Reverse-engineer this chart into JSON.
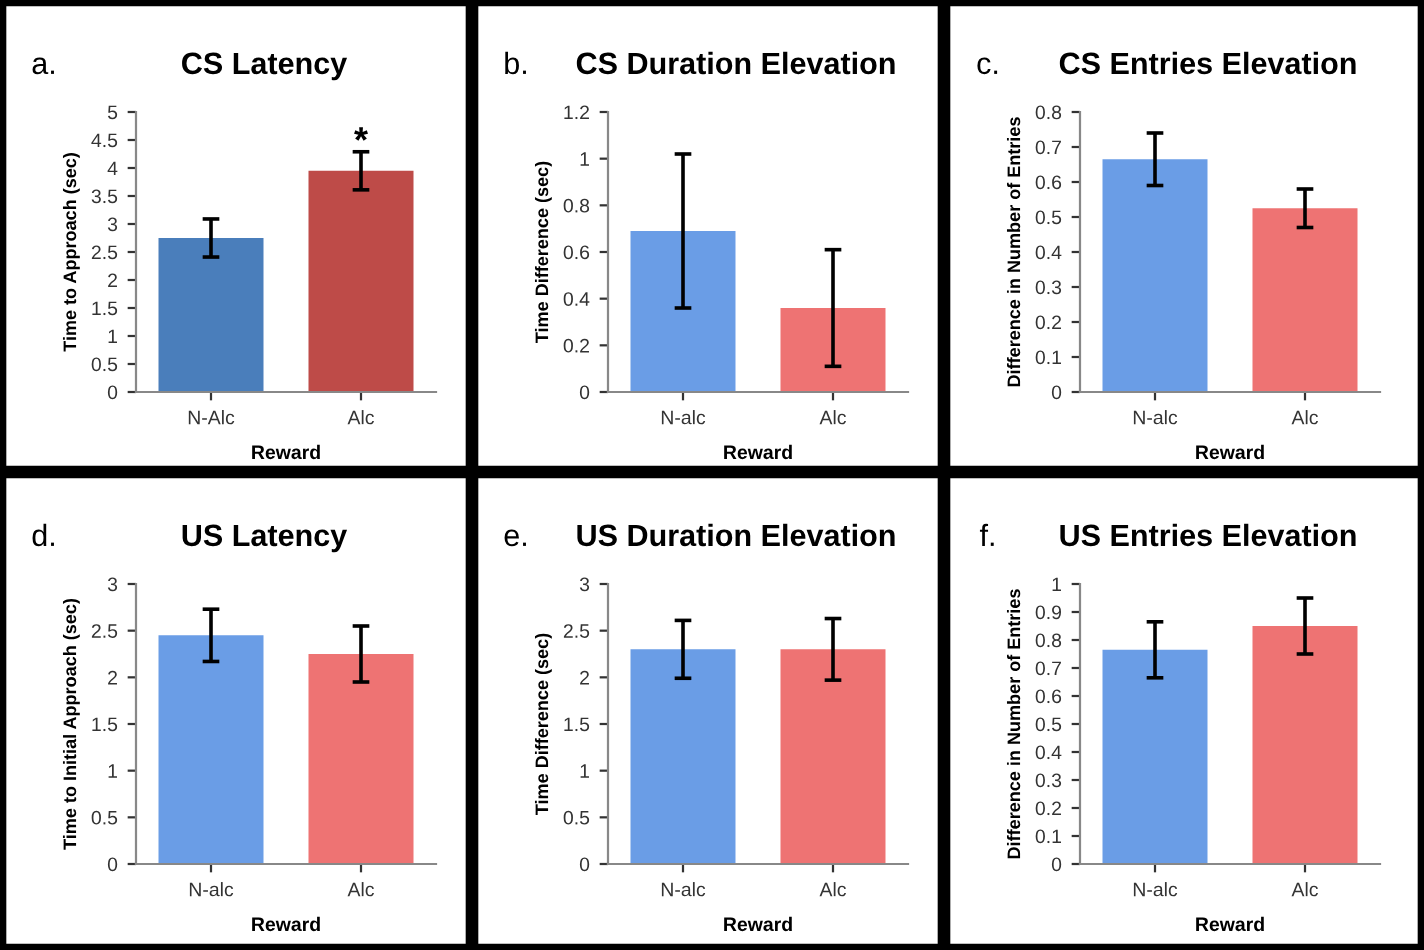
{
  "chart_data": [
    {
      "type": "bar",
      "title": "CS Latency",
      "annotations": [
        "a.",
        {
          "text": "*",
          "x": "Alc",
          "y": 4.45
        }
      ],
      "xlabel": "Reward",
      "ylabel": "Time to Approach (sec)",
      "categories": [
        "N-Alc",
        "Alc"
      ],
      "values": [
        2.75,
        3.95
      ],
      "errors": [
        0.34,
        0.34
      ],
      "colors": [
        "#4a7ebb",
        "#be4b48"
      ],
      "ylim": [
        0,
        5
      ],
      "yticks": [
        0,
        0.5,
        1,
        1.5,
        2,
        2.5,
        3,
        3.5,
        4,
        4.5,
        5
      ],
      "grid": false,
      "legend": false
    },
    {
      "type": "bar",
      "title": "CS Duration Elevation",
      "annotations": [
        "b."
      ],
      "xlabel": "Reward",
      "ylabel": "Time Difference (sec)",
      "categories": [
        "N-alc",
        "Alc"
      ],
      "values": [
        0.69,
        0.36
      ],
      "errors": [
        0.33,
        0.25
      ],
      "colors": [
        "#6a9de6",
        "#ee7373"
      ],
      "ylim": [
        0,
        1.2
      ],
      "yticks": [
        0,
        0.2,
        0.4,
        0.6,
        0.8,
        1,
        1.2
      ],
      "grid": false,
      "legend": false
    },
    {
      "type": "bar",
      "title": "CS Entries Elevation",
      "annotations": [
        "c."
      ],
      "xlabel": "Reward",
      "ylabel": "Difference in Number of Entries",
      "categories": [
        "N-alc",
        "Alc"
      ],
      "values": [
        0.665,
        0.525
      ],
      "errors": [
        0.075,
        0.055
      ],
      "colors": [
        "#6a9de6",
        "#ee7373"
      ],
      "ylim": [
        0,
        0.8
      ],
      "yticks": [
        0,
        0.1,
        0.2,
        0.3,
        0.4,
        0.5,
        0.6,
        0.7,
        0.8
      ],
      "grid": false,
      "legend": false
    },
    {
      "type": "bar",
      "title": "US Latency",
      "annotations": [
        "d."
      ],
      "xlabel": "Reward",
      "ylabel": "Time to Initial Approach (sec)",
      "categories": [
        "N-alc",
        "Alc"
      ],
      "values": [
        2.45,
        2.25
      ],
      "errors": [
        0.28,
        0.3
      ],
      "colors": [
        "#6a9de6",
        "#ee7373"
      ],
      "ylim": [
        0,
        3
      ],
      "yticks": [
        0,
        0.5,
        1,
        1.5,
        2,
        2.5,
        3
      ],
      "grid": false,
      "legend": false
    },
    {
      "type": "bar",
      "title": "US Duration Elevation",
      "annotations": [
        "e."
      ],
      "xlabel": "Reward",
      "ylabel": "Time Difference (sec)",
      "categories": [
        "N-alc",
        "Alc"
      ],
      "values": [
        2.3,
        2.3
      ],
      "errors": [
        0.31,
        0.33
      ],
      "colors": [
        "#6a9de6",
        "#ee7373"
      ],
      "ylim": [
        0,
        3
      ],
      "yticks": [
        0,
        0.5,
        1,
        1.5,
        2,
        2.5,
        3
      ],
      "grid": false,
      "legend": false
    },
    {
      "type": "bar",
      "title": "US Entries Elevation",
      "annotations": [
        "f."
      ],
      "xlabel": "Reward",
      "ylabel": "Difference in Number of Entries",
      "categories": [
        "N-alc",
        "Alc"
      ],
      "values": [
        0.765,
        0.85
      ],
      "errors": [
        0.1,
        0.1
      ],
      "colors": [
        "#6a9de6",
        "#ee7373"
      ],
      "ylim": [
        0,
        1
      ],
      "yticks": [
        0,
        0.1,
        0.2,
        0.3,
        0.4,
        0.5,
        0.6,
        0.7,
        0.8,
        0.9,
        1
      ],
      "grid": false,
      "legend": false
    }
  ]
}
